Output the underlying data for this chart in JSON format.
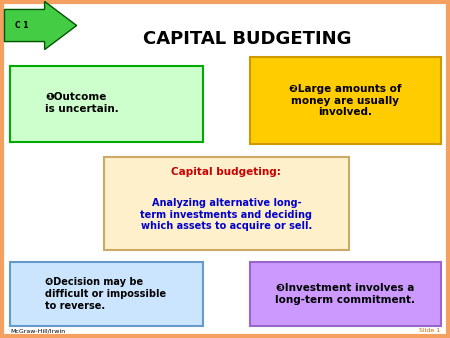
{
  "title": "CAPITAL BUDGETING",
  "title_fontsize": 13,
  "title_color": "#000000",
  "background_color": "#ffffff",
  "border_color": "#f4a060",
  "c1_label": "C 1",
  "c1_bg": "#44cc44",
  "c1_text_color": "#000000",
  "box1_text": "❶Outcome\nis uncertain.",
  "box1_bg": "#ccffcc",
  "box1_border": "#00aa00",
  "box2_text": "❷Large amounts of\nmoney are usually\ninvolved.",
  "box2_bg": "#ffcc00",
  "box2_border": "#cc9900",
  "box3_text": "❸Investment involves a\nlong-term commitment.",
  "box3_bg": "#cc99ff",
  "box3_border": "#9966cc",
  "box4_text": "❹Decision may be\ndifficult or impossible\nto reverse.",
  "box4_bg": "#cce5ff",
  "box4_border": "#6699cc",
  "center_title": "Capital budgeting:",
  "center_body": "Analyzing alternative long-\nterm investments and deciding\nwhich assets to acquire or sell.",
  "center_bg": "#fff0cc",
  "center_border": "#ccaa66",
  "center_title_color": "#cc0000",
  "center_body_color": "#0000cc",
  "footer_left": "McGraw-Hill/Irwin",
  "footer_right": "Slide 1",
  "footer_color_left": "#000000",
  "footer_color_right": "#cc6600"
}
